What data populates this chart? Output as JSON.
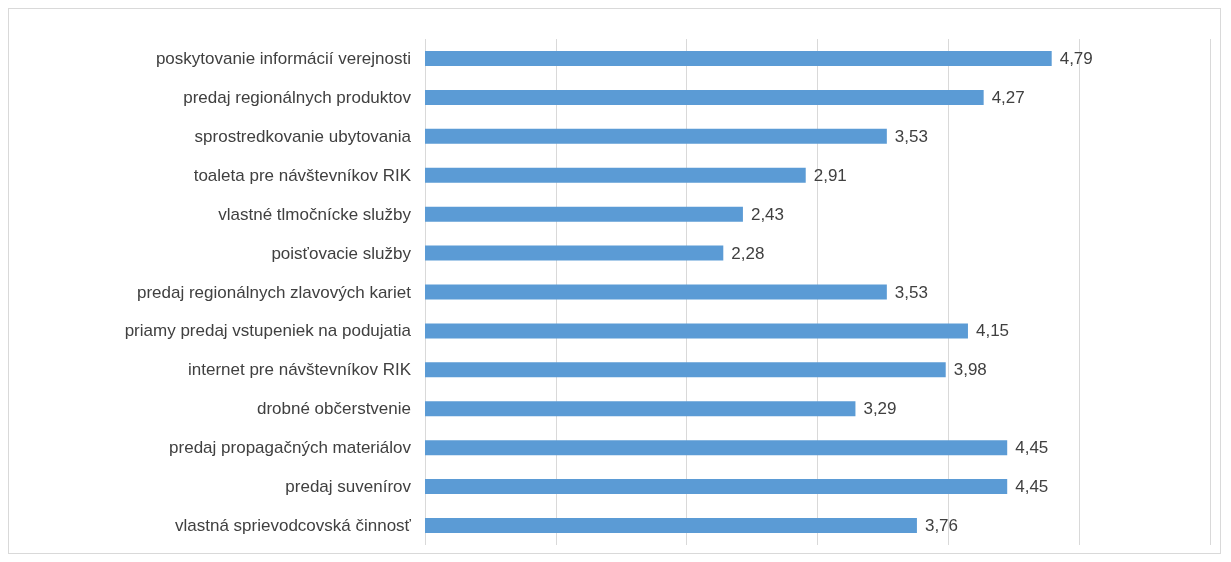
{
  "chart_data": {
    "type": "bar",
    "orientation": "horizontal",
    "categories": [
      "poskytovanie informácií verejnosti",
      "predaj regionálnych produktov",
      "sprostredkovanie ubytovania",
      "toaleta pre návštevníkov RIK",
      "vlastné tlmočnícke služby",
      "poisťovacie služby",
      "predaj regionálnych zlavových kariet",
      "priamy predaj vstupeniek na podujatia",
      "internet pre návštevníkov RIK",
      "drobné občerstvenie",
      "predaj propagačných materiálov",
      "predaj suvenírov",
      "vlastná sprievodcovská činnosť"
    ],
    "values": [
      4.79,
      4.27,
      3.53,
      2.91,
      2.43,
      2.28,
      3.53,
      4.15,
      3.98,
      3.29,
      4.45,
      4.45,
      3.76
    ],
    "value_labels": [
      "4,79",
      "4,27",
      "3,53",
      "2,91",
      "2,43",
      "2,28",
      "3,53",
      "4,15",
      "3,98",
      "3,29",
      "4,45",
      "4,45",
      "3,76"
    ],
    "color": "#5b9bd5",
    "xlim": [
      0,
      6
    ],
    "xticks": [
      {
        "value": 0,
        "label": null
      },
      {
        "value": 1,
        "label": null
      },
      {
        "value": 2,
        "label": null
      },
      {
        "value": 3,
        "label": null
      },
      {
        "value": 4,
        "label": null
      },
      {
        "value": 5,
        "label": null
      },
      {
        "value": 6,
        "label": null
      }
    ],
    "grid": "x",
    "tick_labels": "y"
  }
}
